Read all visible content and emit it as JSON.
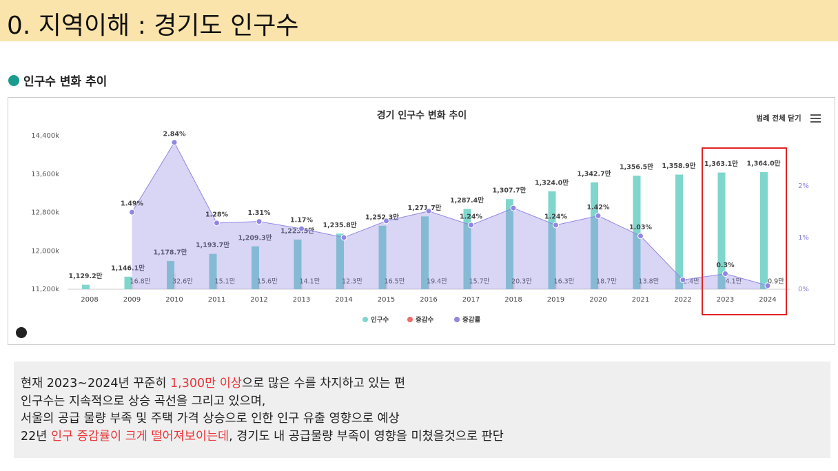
{
  "header": {
    "title": "0. 지역이해 : 경기도 인구수"
  },
  "section": {
    "title": "인구수 변화 추이"
  },
  "chart_data": {
    "type": "bar",
    "title": "경기 인구수 변화 추이",
    "legend_button": "범례 전체 닫기",
    "categories": [
      "2008",
      "2009",
      "2010",
      "2011",
      "2012",
      "2013",
      "2014",
      "2015",
      "2016",
      "2017",
      "2018",
      "2019",
      "2020",
      "2021",
      "2022",
      "2023",
      "2024"
    ],
    "series": [
      {
        "name": "인구수",
        "color": "#7fd6cc",
        "type": "bar",
        "values": [
          11292,
          11461,
          11787,
          11937,
          12093,
          12235,
          12358,
          12523,
          12717,
          12874,
          13077,
          13240,
          13427,
          13565,
          13589,
          13631,
          13640
        ],
        "value_labels": [
          "1,129.2만",
          "1,146.1만",
          "1,178.7만",
          "1,193.7만",
          "1,209.3만",
          "1,223.5만",
          "1,235.8만",
          "1,252.3만",
          "1,271.7만",
          "1,287.4만",
          "1,307.7만",
          "1,324.0만",
          "1,342.7만",
          "1,356.5만",
          "1,358.9만",
          "1,363.1만",
          "1,364.0만"
        ]
      },
      {
        "name": "증감수",
        "color": "#f06a6a",
        "type": "bar",
        "values": [
          null,
          168,
          326,
          151,
          156,
          141,
          123,
          165,
          194,
          157,
          203,
          163,
          187,
          138,
          24,
          41,
          9
        ],
        "value_labels": [
          null,
          "16.8만",
          "32.6만",
          "15.1만",
          "15.6만",
          "14.1만",
          "12.3만",
          "16.5만",
          "19.4만",
          "15.7만",
          "20.3만",
          "16.3만",
          "18.7만",
          "13.8만",
          "2.4만",
          "4.1만",
          "0.9만"
        ]
      },
      {
        "name": "증감률",
        "color": "#9087e3",
        "type": "area",
        "axis": "y2",
        "values": [
          null,
          1.49,
          2.84,
          1.28,
          1.31,
          1.17,
          1.0,
          1.32,
          1.51,
          1.24,
          1.57,
          1.24,
          1.42,
          1.03,
          0.18,
          0.3,
          0.07
        ],
        "value_labels": [
          null,
          "1.49%",
          "2.84%",
          "1.28%",
          "1.31%",
          "1.17%",
          null,
          null,
          null,
          "1.24%",
          null,
          "1.24%",
          "1.42%",
          "1.03%",
          null,
          "0.3%",
          null
        ]
      }
    ],
    "ylim": [
      11200,
      14400
    ],
    "yticks": [
      {
        "value": 11200,
        "label": "11,200k"
      },
      {
        "value": 12000,
        "label": "12,000k"
      },
      {
        "value": 12800,
        "label": "12,800k"
      },
      {
        "value": 13600,
        "label": "13,600k"
      },
      {
        "value": 14400,
        "label": "14,400k"
      }
    ],
    "y2lim": [
      0,
      2.97
    ],
    "y2ticks": [
      {
        "value": 0,
        "label": "0%"
      },
      {
        "value": 1,
        "label": "1%"
      },
      {
        "value": 2,
        "label": "2%"
      }
    ],
    "legend": "bottom"
  },
  "notes": [
    [
      {
        "text": "현재 2023~2024년 꾸준히 ",
        "color": "#222222"
      },
      {
        "text": "1,300만 이상",
        "color": "#e8363a"
      },
      {
        "text": "으로 많은 수를 차지하고 있는 편",
        "color": "#222222"
      }
    ],
    [
      {
        "text": "인구수는 지속적으로 상승 곡선을 그리고 있으며,",
        "color": "#222222"
      }
    ],
    [
      {
        "text": "서울의 공급 물량 부족 및 주택 가격 상승으로 인한 인구 유출 영향으로 예상",
        "color": "#222222"
      }
    ],
    [
      {
        "text": "22년 ",
        "color": "#222222"
      },
      {
        "text": "인구 증감률이 크게 떨어져보이는데",
        "color": "#e8363a"
      },
      {
        "text": ", 경기도 내 공급물량 부족이 영향을 미쳤을것으로 판단",
        "color": "#222222"
      }
    ]
  ]
}
